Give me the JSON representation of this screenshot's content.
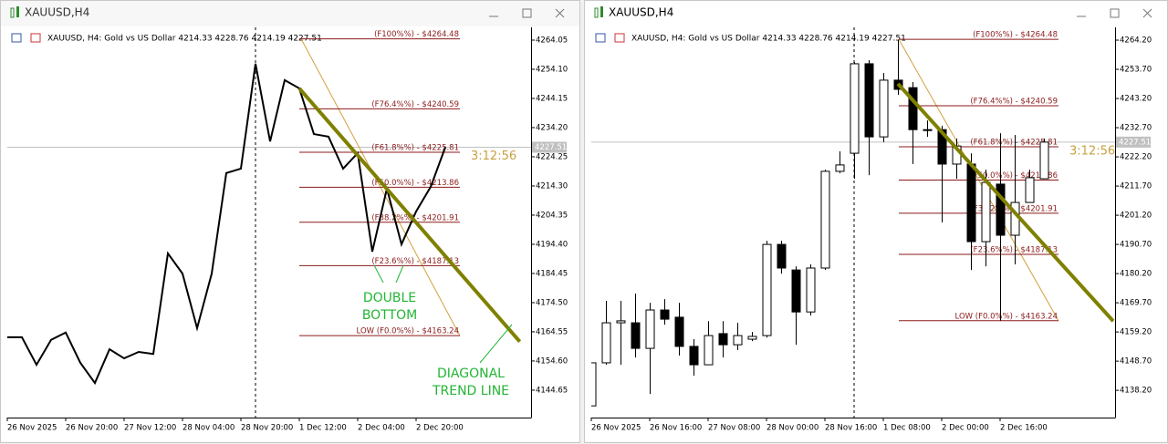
{
  "chart_data": [
    {
      "type": "line",
      "window_title": "XAUUSD,H4",
      "info": "XAUUSD, H4:  Gold vs US Dollar  4214.33 4228.76 4214.19 4227.51",
      "categories": [
        "26 Nov 2025",
        null,
        null,
        null,
        "26 Nov 20:00",
        null,
        null,
        null,
        "27 Nov 12:00",
        null,
        null,
        null,
        "28 Nov 04:00",
        null,
        null,
        null,
        "28 Nov 20:00",
        null,
        null,
        null,
        "1 Dec 12:00",
        null,
        null,
        null,
        "2 Dec 04:00",
        null,
        null,
        null,
        "2 Dec 20:00",
        null,
        null
      ],
      "values": [
        4162.7,
        4162.7,
        4153.3,
        4161.8,
        4164.3,
        4154.0,
        4147.1,
        4158.6,
        4155.5,
        4157.7,
        4157.0,
        4191.3,
        4184.4,
        4165.8,
        4184.4,
        4218.7,
        4220.2,
        4256.0,
        4229.5,
        4250.4,
        4247.6,
        4232.0,
        4231.1,
        4220.2,
        4225.5,
        4191.9,
        4213.4,
        4194.4,
        4205.6,
        4214.0,
        4227.51
      ],
      "color": "#000000",
      "ylim": [
        4135.3,
        4268.4
      ],
      "yticks": [
        4264.05,
        {
          "value": 4254.1,
          "label": "4254.10"
        },
        4244.15,
        {
          "value": 4234.2,
          "label": "4234.20"
        },
        4224.25,
        {
          "value": 4214.3,
          "label": "4214.30"
        },
        4204.35,
        {
          "value": 4194.4,
          "label": "4194.40"
        },
        4184.45,
        {
          "value": 4174.5,
          "label": "4174.50"
        },
        4164.55,
        {
          "value": 4154.6,
          "label": "4154.60"
        },
        4144.65
      ],
      "current_price": 4227.51,
      "countdown": "3:12:56",
      "fib_levels": [
        {
          "label": "(F100%%) -  $4264.48",
          "value": 4264.48
        },
        {
          "label": "(F76.4%%) -  $4240.59",
          "value": 4240.59
        },
        {
          "label": "(F61.8%%) -  $4225.81",
          "value": 4225.81
        },
        {
          "label": "(F50.0%%) -  $4213.86",
          "value": 4213.86
        },
        {
          "label": "(F38.2%%) -  $4201.91",
          "value": 4201.91
        },
        {
          "label": "(F23.6%%) -  $4187.13",
          "value": 4187.13
        },
        {
          "label": "LOW (F0.0%%) -  $4163.24",
          "value": 4163.24
        }
      ],
      "fib_color": "#8b1a1a",
      "trend_line": {
        "x": [
          20,
          35.1
        ],
        "y": [
          4247.6,
          4161.2
        ],
        "color": "#808000"
      },
      "annotations": [
        {
          "lines": [
            "DOUBLE",
            "BOTTOM"
          ]
        },
        {
          "lines": [
            "DIAGONAL",
            "TREND LINE"
          ]
        }
      ],
      "annotation_color": "#22b533"
    },
    {
      "type": "candlestick",
      "window_title": "XAUUSD,H4",
      "info": "XAUUSD, H4:  Gold vs US Dollar  4214.33 4228.76 4214.19 4227.51",
      "categories": [
        "26 Nov 2025",
        null,
        null,
        null,
        "26 Nov 16:00",
        null,
        null,
        null,
        "27 Nov 08:00",
        null,
        null,
        null,
        "28 Nov 00:00",
        null,
        null,
        null,
        "28 Nov 16:00",
        null,
        null,
        null,
        "1 Dec 08:00",
        null,
        null,
        null,
        "2 Dec 00:00",
        null,
        null,
        null,
        "2 Dec 16:00",
        null,
        null,
        null
      ],
      "open": [
        4132.6,
        4148.1,
        4162.5,
        4162.5,
        4153.3,
        4167.1,
        4164.5,
        4154.0,
        4147.4,
        4158.6,
        4154.6,
        4156.6,
        4157.9,
        4190.7,
        4181.5,
        4166.4,
        4182.2,
        4217.0,
        4223.5,
        4255.7,
        4229.4,
        4249.8,
        4247.1,
        4232.0,
        4232.0,
        4219.6,
        4219.6,
        4191.7,
        4212.4,
        4194.0,
        4205.8,
        4214.33
      ],
      "high": [
        4148.1,
        4170.4,
        4170.4,
        4173.0,
        4169.7,
        4171.0,
        4169.7,
        4156.6,
        4163.1,
        4163.1,
        4162.5,
        4159.2,
        4192.0,
        4192.0,
        4182.8,
        4183.5,
        4217.6,
        4224.2,
        4256.3,
        4257.0,
        4252.4,
        4264.4,
        4249.1,
        4235.3,
        4233.4,
        4228.8,
        4223.5,
        4217.6,
        4230.7,
        4230.1,
        4217.6,
        4228.76
      ],
      "low": [
        4132.6,
        4147.4,
        4147.4,
        4150.0,
        4136.9,
        4161.8,
        4150.7,
        4143.5,
        4147.4,
        4150.0,
        4152.7,
        4155.9,
        4157.2,
        4180.2,
        4154.6,
        4165.1,
        4181.5,
        4216.3,
        4214.3,
        4215.6,
        4227.5,
        4244.5,
        4219.6,
        4229.4,
        4198.6,
        4214.3,
        4181.5,
        4182.8,
        4163.3,
        4183.5,
        4205.8,
        4214.19
      ],
      "close": [
        4148.1,
        4162.5,
        4163.2,
        4153.3,
        4167.1,
        4163.8,
        4154.0,
        4147.4,
        4157.9,
        4154.6,
        4157.9,
        4157.6,
        4190.7,
        4182.2,
        4166.4,
        4182.2,
        4217.0,
        4219.3,
        4255.7,
        4229.4,
        4249.8,
        4246.5,
        4232.0,
        4231.7,
        4219.6,
        4226.1,
        4191.7,
        4213.0,
        4194.0,
        4205.8,
        4214.7,
        4227.51
      ],
      "bull_color": "#ffffff",
      "bear_color": "#000000",
      "ylim": [
        4128.4,
        4268.8
      ],
      "yticks": [
        {
          "value": 4264.2,
          "label": "4264.20"
        },
        {
          "value": 4253.7,
          "label": "4253.70"
        },
        {
          "value": 4243.2,
          "label": "4243.20"
        },
        {
          "value": 4232.7,
          "label": "4232.70"
        },
        {
          "value": 4222.2,
          "label": "4222.20"
        },
        {
          "value": 4211.7,
          "label": "4211.70"
        },
        {
          "value": 4201.2,
          "label": "4201.20"
        },
        {
          "value": 4190.7,
          "label": "4190.70"
        },
        {
          "value": 4180.2,
          "label": "4180.20"
        },
        {
          "value": 4169.7,
          "label": "4169.70"
        },
        {
          "value": 4159.2,
          "label": "4159.20"
        },
        {
          "value": 4148.7,
          "label": "4148.70"
        },
        {
          "value": 4138.2,
          "label": "4138.20"
        }
      ],
      "current_price": 4227.51,
      "countdown": "3:12:56",
      "fib_levels": [
        {
          "label": "(F100%%) -  $4264.48",
          "value": 4264.48
        },
        {
          "label": "(F76.4%%) -  $4240.59",
          "value": 4240.59
        },
        {
          "label": "(F61.8%%) -  $4225.81",
          "value": 4225.81
        },
        {
          "label": "(F50.0%%) -  $4213.86",
          "value": 4213.86
        },
        {
          "label": "(F38.2%%) -  $4201.91",
          "value": 4201.91
        },
        {
          "label": "(F23.6%%) -  $4187.13",
          "value": 4187.13
        },
        {
          "label": "LOW (F0.0%%) -  $4163.24",
          "value": 4163.24
        }
      ],
      "fib_color": "#8b1a1a",
      "trend_line": {
        "x": [
          21,
          35.75
        ],
        "y": [
          4248.5,
          4163.1
        ],
        "color": "#808000"
      }
    }
  ]
}
